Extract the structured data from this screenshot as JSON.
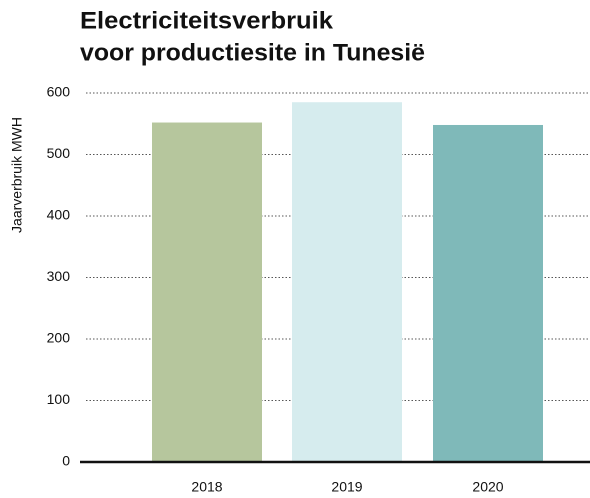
{
  "chart_data": {
    "type": "bar",
    "title": [
      "Electriciteitsverbruik",
      "voor productiesite in Tunesië"
    ],
    "y_label": "Jaarverbruik MWH",
    "categories": [
      "2018",
      "2019",
      "2020"
    ],
    "values": [
      552,
      585,
      548
    ],
    "colors": [
      "#b6c69d",
      "#d6ecee",
      "#7fb9b9"
    ],
    "ylim": [
      0,
      600
    ],
    "yticks": [
      0,
      100,
      200,
      300,
      400,
      500,
      600
    ],
    "grid": true
  }
}
